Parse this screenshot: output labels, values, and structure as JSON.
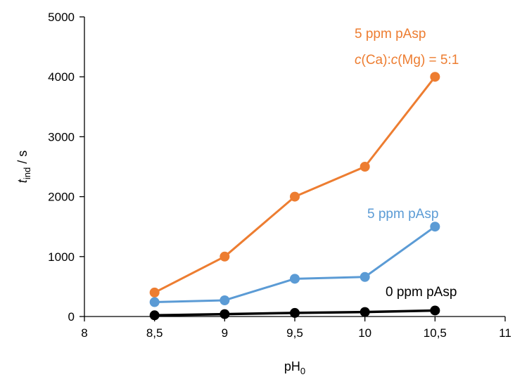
{
  "chart_data": {
    "type": "line",
    "xlabel": {
      "main": "pH",
      "sub": "0"
    },
    "ylabel": {
      "main": "t",
      "sub": "ind",
      "suffix": " / s"
    },
    "xlim": [
      8,
      11
    ],
    "ylim": [
      0,
      5000
    ],
    "x_ticks": [
      8,
      8.5,
      9,
      9.5,
      10,
      10.5,
      11
    ],
    "x_tick_labels": [
      "8",
      "8,5",
      "9",
      "9,5",
      "10",
      "10,5",
      "11"
    ],
    "y_ticks": [
      0,
      1000,
      2000,
      3000,
      4000,
      5000
    ],
    "y_tick_labels": [
      "0",
      "1000",
      "2000",
      "3000",
      "4000",
      "5000"
    ],
    "grid": false,
    "series": [
      {
        "name": "5 ppm pAsp c(Ca):c(Mg) = 5:1",
        "color": "#ED7D31",
        "x": [
          8.5,
          9,
          9.5,
          10,
          10.5
        ],
        "y": [
          400,
          1000,
          2000,
          2500,
          4000
        ]
      },
      {
        "name": "5 ppm pAsp",
        "color": "#5B9BD5",
        "x": [
          8.5,
          9,
          9.5,
          10,
          10.5
        ],
        "y": [
          240,
          270,
          630,
          660,
          1500
        ]
      },
      {
        "name": "0 ppm pAsp",
        "color": "#000000",
        "x": [
          8.5,
          9,
          9.5,
          10,
          10.5
        ],
        "y": [
          20,
          40,
          60,
          75,
          100
        ]
      }
    ],
    "annotations": [
      {
        "text": "5 ppm pAsp",
        "color": "#ED7D31"
      },
      {
        "parts": [
          {
            "text": "c",
            "italic": true
          },
          {
            "text": "(Ca):",
            "italic": false
          },
          {
            "text": "c",
            "italic": true
          },
          {
            "text": "(Mg) = 5:1",
            "italic": false
          }
        ],
        "color": "#ED7D31"
      },
      {
        "text": "5 ppm pAsp",
        "color": "#5B9BD5"
      },
      {
        "text": "0 ppm pAsp",
        "color": "#000000"
      }
    ]
  }
}
